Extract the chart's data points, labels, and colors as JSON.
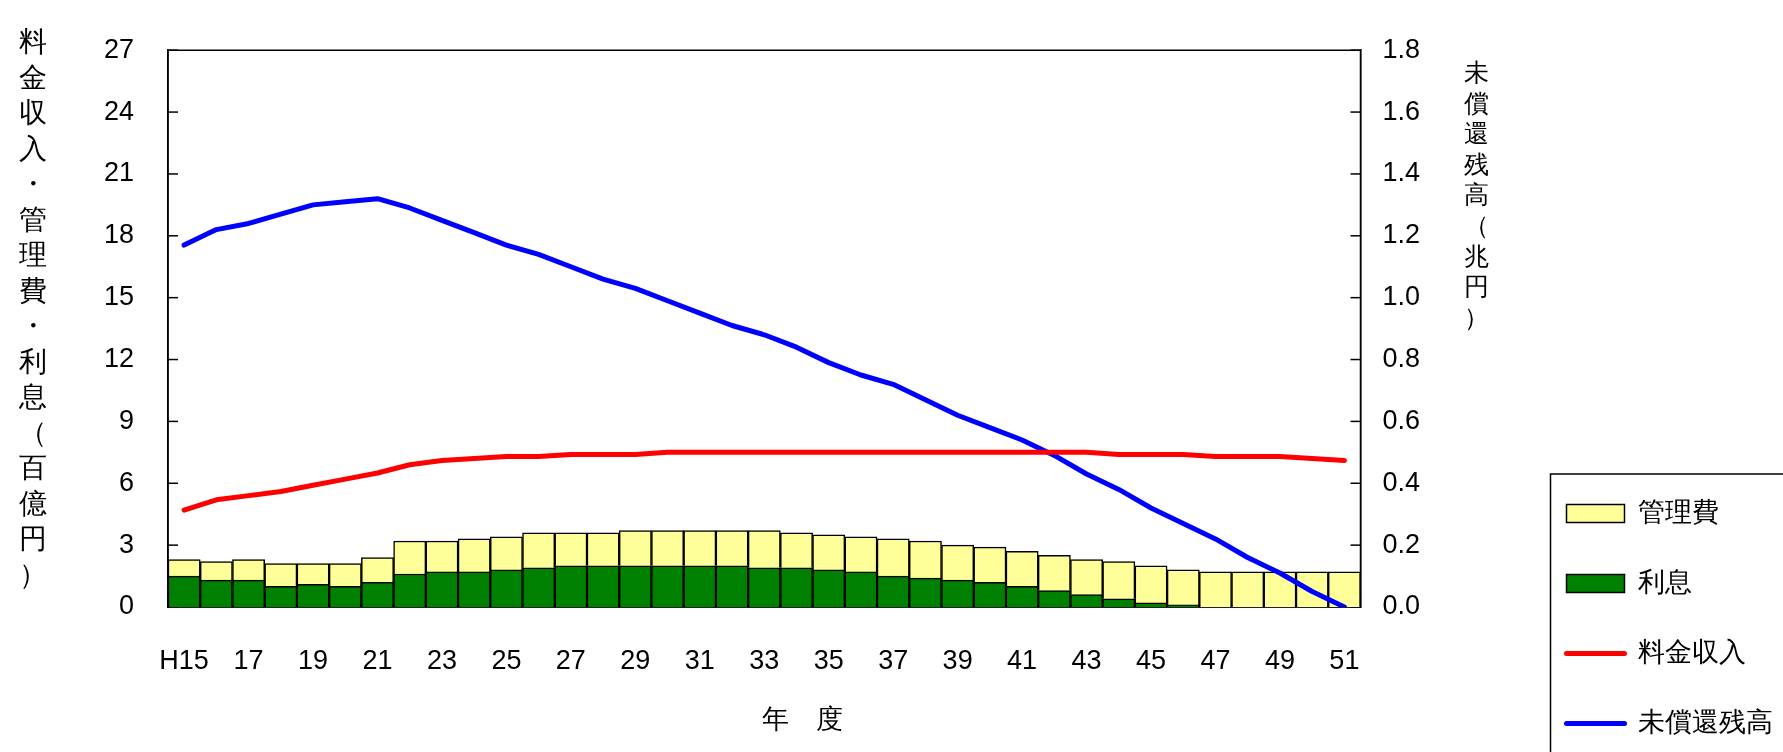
{
  "chart_data": {
    "type": "bar",
    "stacked": true,
    "xlabel": "年　度",
    "ylabel": "料金収入・管理費・利息（百億円）",
    "y2label": "未償還残高（兆円）",
    "categories": [
      "H15",
      null,
      "17",
      null,
      "19",
      null,
      "21",
      null,
      "23",
      null,
      "25",
      null,
      "27",
      null,
      "29",
      null,
      "31",
      null,
      "33",
      null,
      "35",
      null,
      "37",
      null,
      "39",
      null,
      "41",
      null,
      "43",
      null,
      "45",
      null,
      "47",
      null,
      "49",
      null,
      "51"
    ],
    "series": [
      {
        "name": "利息",
        "type": "bar",
        "color": "#008000",
        "values": [
          1.5,
          1.3,
          1.3,
          1.0,
          1.1,
          1.0,
          1.2,
          1.6,
          1.7,
          1.7,
          1.8,
          1.9,
          2.0,
          2.0,
          2.0,
          2.0,
          2.0,
          2.0,
          1.9,
          1.9,
          1.8,
          1.7,
          1.5,
          1.4,
          1.3,
          1.2,
          1.0,
          0.8,
          0.6,
          0.4,
          0.2,
          0.1,
          0,
          0,
          0,
          0,
          0
        ]
      },
      {
        "name": "管理費",
        "type": "bar",
        "color": "#ffff99",
        "values": [
          0.8,
          0.9,
          1.0,
          1.1,
          1.0,
          1.1,
          1.2,
          1.6,
          1.5,
          1.6,
          1.6,
          1.7,
          1.6,
          1.6,
          1.7,
          1.7,
          1.7,
          1.7,
          1.8,
          1.7,
          1.7,
          1.7,
          1.8,
          1.8,
          1.7,
          1.7,
          1.7,
          1.7,
          1.7,
          1.8,
          1.8,
          1.7,
          1.7,
          1.7,
          1.7,
          1.7,
          1.7
        ]
      },
      {
        "name": "料金収入",
        "type": "line",
        "color": "#ff0000",
        "values": [
          4.7,
          5.2,
          5.4,
          5.6,
          5.9,
          6.2,
          6.5,
          6.9,
          7.1,
          7.2,
          7.3,
          7.3,
          7.4,
          7.4,
          7.4,
          7.5,
          7.5,
          7.5,
          7.5,
          7.5,
          7.5,
          7.5,
          7.5,
          7.5,
          7.5,
          7.5,
          7.5,
          7.5,
          7.5,
          7.4,
          7.4,
          7.4,
          7.3,
          7.3,
          7.3,
          7.2,
          7.1
        ]
      },
      {
        "name": "未償還残高",
        "type": "line",
        "color": "#0000ff",
        "axis": "y2",
        "values": [
          1.17,
          1.22,
          1.24,
          1.27,
          1.3,
          1.31,
          1.32,
          1.29,
          1.25,
          1.21,
          1.17,
          1.14,
          1.1,
          1.06,
          1.03,
          0.99,
          0.95,
          0.91,
          0.88,
          0.84,
          0.79,
          0.75,
          0.72,
          0.67,
          0.62,
          0.58,
          0.54,
          0.49,
          0.43,
          0.38,
          0.32,
          0.27,
          0.22,
          0.16,
          0.11,
          0.05,
          0
        ]
      }
    ],
    "ylim": [
      0,
      27
    ],
    "yticks": [
      0,
      3,
      6,
      9,
      12,
      15,
      18,
      21,
      24,
      27
    ],
    "y2lim": [
      0,
      1.8
    ],
    "y2ticks": [
      {
        "value": 0,
        "label": "0.0"
      },
      0.2,
      0.4,
      0.6,
      0.8,
      {
        "value": 1,
        "label": "1.0"
      },
      1.2,
      1.4,
      1.6,
      1.8
    ],
    "line_style": "solid",
    "legend": "bottom right"
  }
}
